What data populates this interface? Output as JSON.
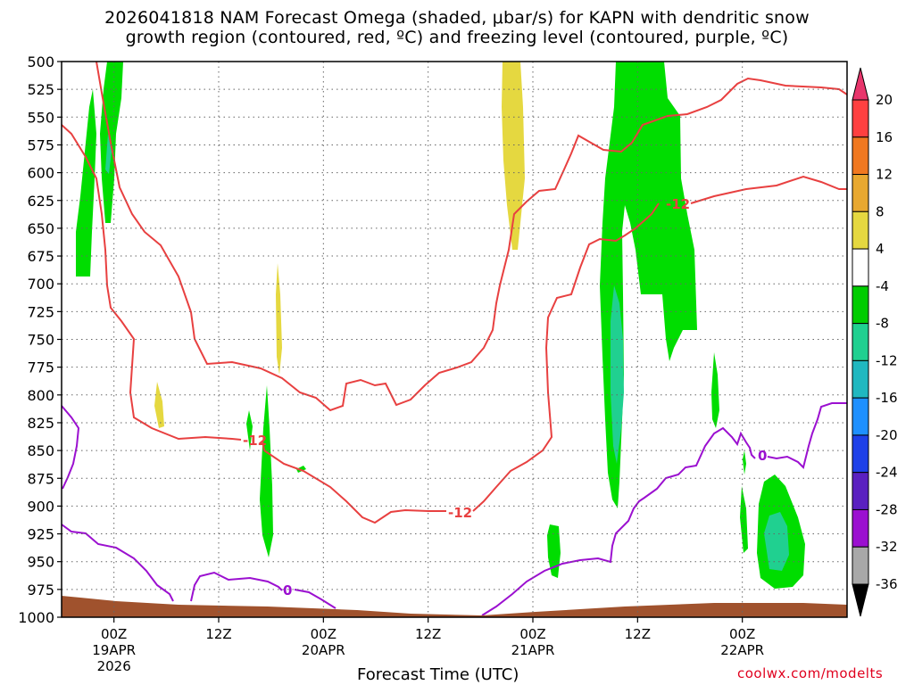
{
  "title_line1": "2026041818 NAM Forecast Omega (shaded, μbar/s) for KAPN with dendritic snow",
  "title_line2": "growth region (contoured, red, ºC) and freezing level (contoured, purple, ºC)",
  "xlabel": "Forecast Time (UTC)",
  "credit": "coolwx.com/modelts",
  "chart_data": {
    "type": "contour",
    "y_axis": {
      "label": "",
      "ticks": [
        "500",
        "525",
        "550",
        "575",
        "600",
        "625",
        "650",
        "675",
        "700",
        "725",
        "750",
        "775",
        "800",
        "825",
        "850",
        "875",
        "900",
        "925",
        "950",
        "975",
        "1000"
      ],
      "range": [
        500,
        1000
      ],
      "inverted": true
    },
    "x_axis": {
      "range_hours": [
        -6,
        84
      ],
      "ticks": [
        {
          "hour": 0,
          "label": "00Z",
          "sub1": "19APR",
          "sub2": "2026"
        },
        {
          "hour": 12,
          "label": "12Z",
          "sub1": "",
          "sub2": ""
        },
        {
          "hour": 24,
          "label": "00Z",
          "sub1": "20APR",
          "sub2": ""
        },
        {
          "hour": 36,
          "label": "12Z",
          "sub1": "",
          "sub2": ""
        },
        {
          "hour": 48,
          "label": "00Z",
          "sub1": "21APR",
          "sub2": ""
        },
        {
          "hour": 60,
          "label": "12Z",
          "sub1": "",
          "sub2": ""
        },
        {
          "hour": 72,
          "label": "00Z",
          "sub1": "22APR",
          "sub2": ""
        }
      ]
    },
    "grid": true,
    "colorbar": {
      "labels": [
        "20",
        "16",
        "12",
        "8",
        "4",
        "-4",
        "-8",
        "-12",
        "-16",
        "-20",
        "-24",
        "-28",
        "-32",
        "-36"
      ],
      "colors": [
        "#e8356b",
        "#ff4040",
        "#f07820",
        "#e8a830",
        "#e5d840",
        "#ffffff",
        "#00cc00",
        "#20d090",
        "#20b8c0",
        "#1e90ff",
        "#1e40e8",
        "#5a20c0",
        "#9b10d0",
        "#a8a8a8",
        "#000000"
      ]
    },
    "contour_labels": [
      {
        "text": "-12",
        "color": "#e84040"
      },
      {
        "text": "-12",
        "color": "#e84040"
      },
      {
        "text": "-12",
        "color": "#e84040"
      },
      {
        "text": "0",
        "color": "#9b10d0"
      },
      {
        "text": "0",
        "color": "#9b10d0"
      }
    ]
  }
}
